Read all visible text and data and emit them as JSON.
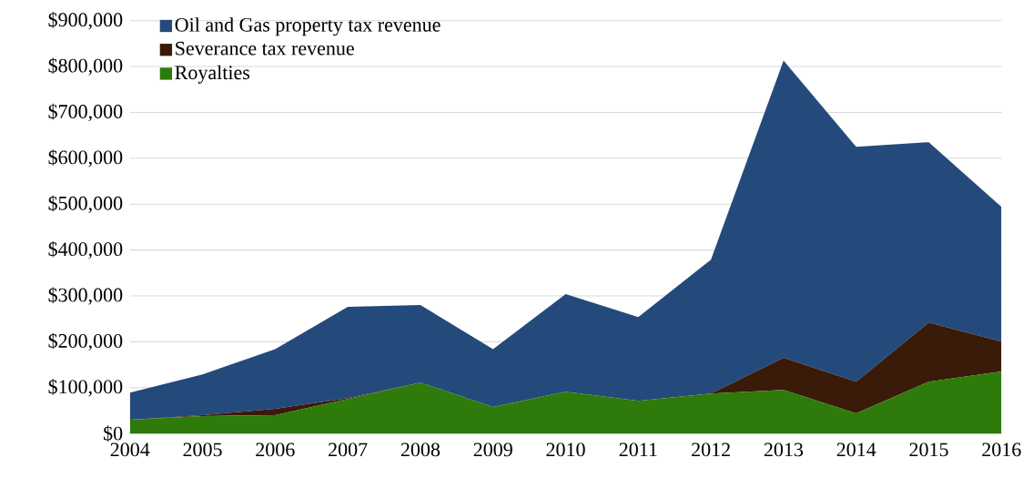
{
  "chart_data": {
    "type": "area",
    "stacked": true,
    "grid": "y",
    "legend": "top left",
    "x": [
      2004,
      2005,
      2006,
      2007,
      2008,
      2009,
      2010,
      2011,
      2012,
      2013,
      2014,
      2015,
      2016
    ],
    "xlim": [
      2004,
      2016
    ],
    "xticks": [
      2004,
      2005,
      2006,
      2007,
      2008,
      2009,
      2010,
      2011,
      2012,
      2013,
      2014,
      2015,
      2016
    ],
    "ylim": [
      0,
      900000
    ],
    "yticks": [
      {
        "value": 0,
        "label": "$0"
      },
      {
        "value": 100000,
        "label": "$100,000"
      },
      {
        "value": 200000,
        "label": "$200,000"
      },
      {
        "value": 300000,
        "label": "$300,000"
      },
      {
        "value": 400000,
        "label": "$400,000"
      },
      {
        "value": 500000,
        "label": "$500,000"
      },
      {
        "value": 600000,
        "label": "$600,000"
      },
      {
        "value": 700000,
        "label": "$700,000"
      },
      {
        "value": 800000,
        "label": "$800,000"
      },
      {
        "value": 900000,
        "label": "$900,000"
      }
    ],
    "series": [
      {
        "name": "Royalties",
        "color": "#2e7a0b",
        "values": [
          30000,
          38000,
          40000,
          75000,
          111000,
          58000,
          91000,
          71000,
          87000,
          95000,
          44000,
          113000,
          135000
        ]
      },
      {
        "name": "Severance tax revenue",
        "color": "#3a1a08",
        "values": [
          0,
          2000,
          14000,
          2000,
          0,
          0,
          0,
          0,
          0,
          70000,
          69000,
          129000,
          65000
        ]
      },
      {
        "name": "Oil and Gas property tax revenue",
        "color": "#244a7c",
        "values": [
          59000,
          89000,
          130000,
          199000,
          169000,
          126000,
          213000,
          183000,
          292000,
          648000,
          512000,
          393000,
          294000
        ]
      }
    ]
  }
}
